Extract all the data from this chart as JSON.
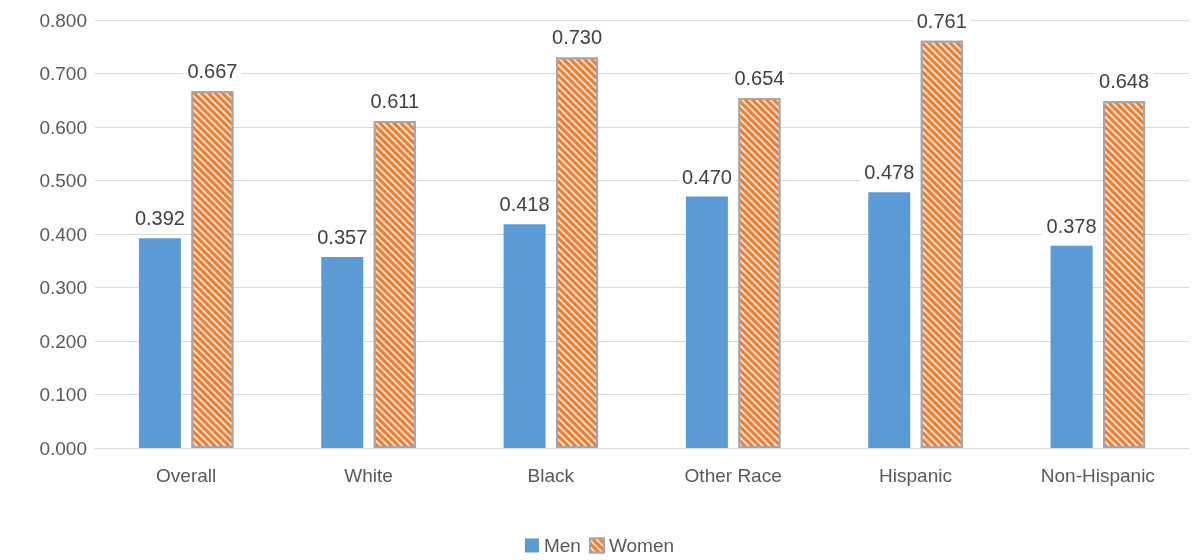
{
  "chart_data": {
    "type": "bar",
    "categories": [
      "Overall",
      "White",
      "Black",
      "Other Race",
      "Hispanic",
      "Non-Hispanic"
    ],
    "series": [
      {
        "name": "Men",
        "color": "#5b9bd5",
        "values": [
          0.392,
          0.357,
          0.418,
          0.47,
          0.478,
          0.378
        ],
        "value_labels": [
          "0.392",
          "0.357",
          "0.418",
          "0.470",
          "0.478",
          "0.378"
        ]
      },
      {
        "name": "Women",
        "color": "#ed7d31",
        "values": [
          0.667,
          0.611,
          0.73,
          0.654,
          0.761,
          0.648
        ],
        "value_labels": [
          "0.667",
          "0.611",
          "0.730",
          "0.654",
          "0.761",
          "0.648"
        ]
      }
    ],
    "ylim": [
      0,
      0.8
    ],
    "yticks": [
      {
        "value": 0,
        "label": "0.000"
      },
      {
        "value": 0.1,
        "label": "0.100"
      },
      {
        "value": 0.2,
        "label": "0.200"
      },
      {
        "value": 0.3,
        "label": "0.300"
      },
      {
        "value": 0.4,
        "label": "0.400"
      },
      {
        "value": 0.5,
        "label": "0.500"
      },
      {
        "value": 0.6,
        "label": "0.600"
      },
      {
        "value": 0.7,
        "label": "0.700"
      },
      {
        "value": 0.8,
        "label": "0.800"
      }
    ],
    "grid": "y",
    "legend": "bottom"
  }
}
